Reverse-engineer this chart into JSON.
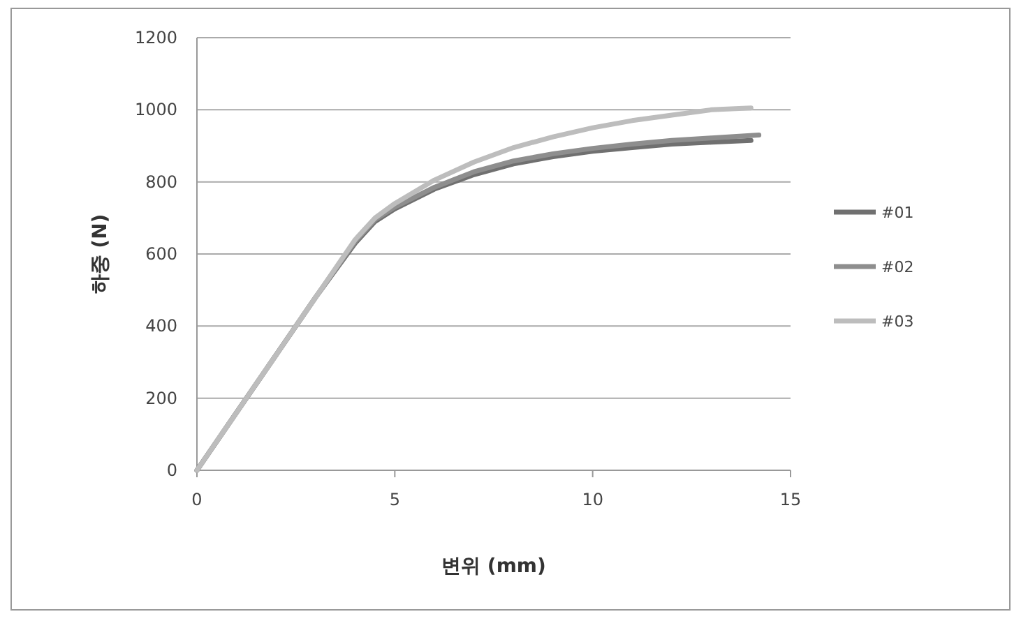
{
  "chart_data": {
    "type": "line",
    "xlabel": "변위 (mm)",
    "ylabel": "하중 (N)",
    "xlim": [
      0,
      15
    ],
    "xticks": [
      0,
      5,
      10,
      15
    ],
    "ylim": [
      0,
      1200
    ],
    "yticks": [
      0,
      200,
      400,
      600,
      800,
      1000,
      1200
    ],
    "grid": "y",
    "legend": "right",
    "marker": "none",
    "line_style": "solid",
    "series": [
      {
        "name": "#01",
        "color": "#707070",
        "x": [
          0,
          1,
          2,
          3,
          4,
          4.5,
          5,
          6,
          7,
          8,
          9,
          10,
          11,
          12,
          13,
          14
        ],
        "values": [
          0,
          160,
          320,
          480,
          630,
          690,
          725,
          780,
          820,
          850,
          870,
          885,
          895,
          905,
          910,
          915
        ]
      },
      {
        "name": "#02",
        "color": "#8e8e8e",
        "x": [
          0,
          1,
          2,
          3,
          4,
          4.5,
          5,
          6,
          7,
          8,
          9,
          10,
          11,
          12,
          13,
          14.2
        ],
        "values": [
          0,
          160,
          320,
          480,
          635,
          695,
          730,
          785,
          828,
          858,
          878,
          893,
          905,
          915,
          922,
          930
        ]
      },
      {
        "name": "#03",
        "color": "#bdbdbd",
        "x": [
          0,
          1,
          2,
          3,
          4,
          4.5,
          5,
          6,
          7,
          8,
          9,
          10,
          11,
          12,
          13,
          14
        ],
        "values": [
          0,
          160,
          320,
          480,
          640,
          700,
          740,
          805,
          855,
          895,
          925,
          950,
          970,
          985,
          1000,
          1005
        ]
      }
    ]
  }
}
